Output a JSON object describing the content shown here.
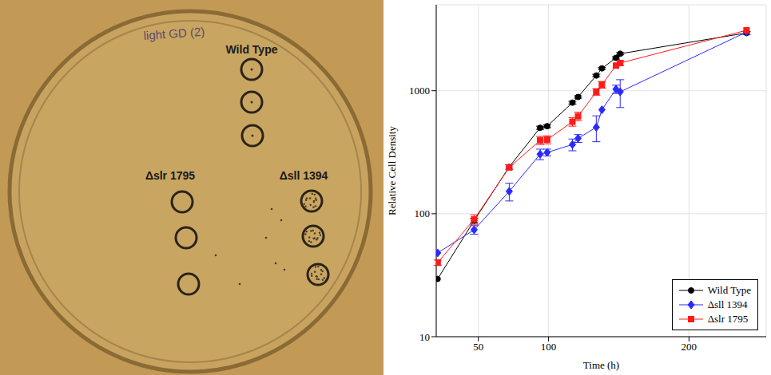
{
  "plate": {
    "handwriting": "light GD (2)",
    "labels": [
      "Wild Type",
      "Δslr 1795",
      "Δsll 1394"
    ]
  },
  "chart_data": {
    "type": "line",
    "xlabel": "Time (h)",
    "ylabel": "Relative Cell Density",
    "x": [
      21,
      47,
      72,
      94,
      99,
      117,
      121,
      134,
      138,
      148,
      151,
      241
    ],
    "series": [
      {
        "name": "Wild Type",
        "color": "#000000",
        "marker": "circle",
        "values": [
          29.5,
          88,
          240,
          500,
          515,
          800,
          890,
          1330,
          1520,
          1850,
          2000,
          2950
        ],
        "errors": [
          0,
          4,
          10,
          15,
          15,
          20,
          20,
          30,
          30,
          40,
          40,
          80
        ]
      },
      {
        "name": "Δsll 1394",
        "color": "#2a2aff",
        "marker": "diamond",
        "values": [
          48,
          74,
          152,
          305,
          315,
          365,
          410,
          505,
          700,
          1030,
          980,
          3000
        ],
        "errors": [
          0,
          6,
          25,
          30,
          20,
          40,
          30,
          120,
          0,
          80,
          250,
          0
        ]
      },
      {
        "name": "Δslr 1795",
        "color": "#ff1a1a",
        "marker": "square",
        "values": [
          40,
          90,
          238,
          395,
          400,
          560,
          620,
          980,
          1120,
          1600,
          1680,
          3100
        ],
        "errors": [
          2,
          8,
          0,
          30,
          30,
          45,
          50,
          60,
          70,
          0,
          80,
          0
        ]
      }
    ],
    "xlim": [
      20,
      255
    ],
    "ylim": [
      10,
      5000
    ],
    "xticks": [
      50,
      100,
      200
    ],
    "yticks": [
      10,
      100,
      1000
    ],
    "log": "y",
    "grid": true,
    "legend": "lower right"
  }
}
